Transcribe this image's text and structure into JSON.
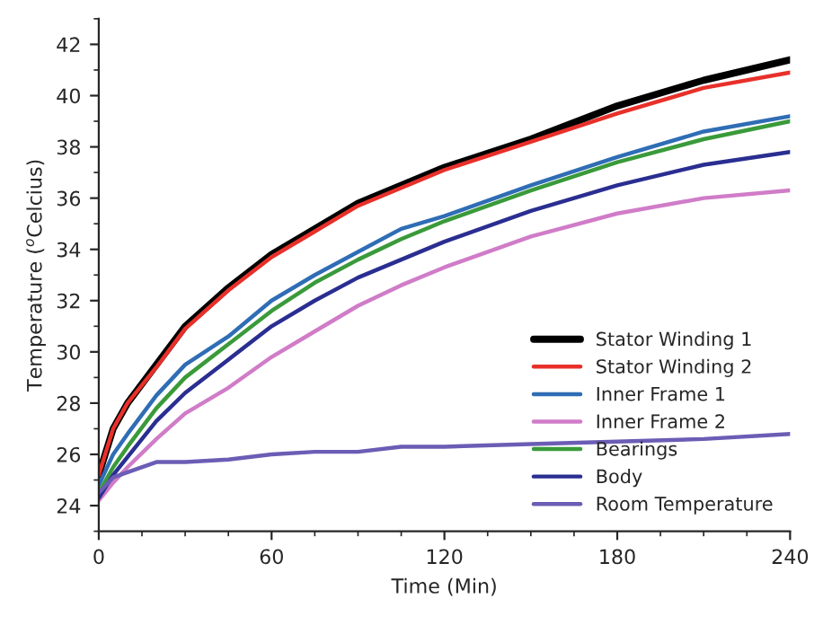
{
  "chart_data": {
    "type": "line",
    "xlabel": "Time (Min)",
    "ylabel": "Temperature ($^{o}$Celcius)",
    "x": [
      0,
      5,
      10,
      20,
      30,
      45,
      60,
      75,
      90,
      105,
      120,
      150,
      180,
      210,
      240
    ],
    "xlim": [
      0,
      240
    ],
    "xticks": [
      0,
      60,
      120,
      180,
      240
    ],
    "ylim": [
      23,
      43
    ],
    "yticks": [
      24,
      26,
      28,
      30,
      32,
      34,
      36,
      38,
      40,
      42
    ],
    "grid": false,
    "legend": "bottom right",
    "line_style": "solid",
    "marker": "none",
    "series": [
      {
        "name": "Stator Winding 1",
        "color": "#000000",
        "values": [
          25.2,
          27.0,
          28.0,
          29.5,
          31.0,
          32.5,
          33.8,
          34.8,
          35.8,
          36.5,
          37.2,
          38.3,
          39.6,
          40.6,
          41.4
        ]
      },
      {
        "name": "Stator Winding 2",
        "color": "#e8302a",
        "values": [
          25.2,
          27.0,
          28.0,
          29.4,
          30.9,
          32.4,
          33.7,
          34.7,
          35.7,
          36.4,
          37.1,
          38.2,
          39.3,
          40.3,
          40.9
        ]
      },
      {
        "name": "Inner Frame 1",
        "color": "#2f6db5",
        "values": [
          24.8,
          26.0,
          26.8,
          28.3,
          29.5,
          30.6,
          32.0,
          33.0,
          33.9,
          34.8,
          35.3,
          36.5,
          37.6,
          38.6,
          39.2
        ]
      },
      {
        "name": "Inner Frame 2",
        "color": "#d07cc8",
        "values": [
          24.2,
          24.9,
          25.5,
          26.6,
          27.6,
          28.6,
          29.8,
          30.8,
          31.8,
          32.6,
          33.3,
          34.5,
          35.4,
          36.0,
          36.3
        ]
      },
      {
        "name": "Bearings",
        "color": "#3a9a3a",
        "values": [
          24.5,
          25.5,
          26.3,
          27.8,
          29.0,
          30.3,
          31.6,
          32.7,
          33.6,
          34.4,
          35.1,
          36.3,
          37.4,
          38.3,
          39.0
        ]
      },
      {
        "name": "Body",
        "color": "#2a2e91",
        "values": [
          24.3,
          25.2,
          25.9,
          27.3,
          28.4,
          29.7,
          31.0,
          32.0,
          32.9,
          33.6,
          34.3,
          35.5,
          36.5,
          37.3,
          37.8
        ]
      },
      {
        "name": "Room Temperature",
        "color": "#6b5db5",
        "values": [
          24.5,
          25.1,
          25.3,
          25.7,
          25.7,
          25.8,
          26.0,
          26.1,
          26.1,
          26.3,
          26.3,
          26.4,
          26.5,
          26.6,
          26.8
        ]
      }
    ]
  }
}
